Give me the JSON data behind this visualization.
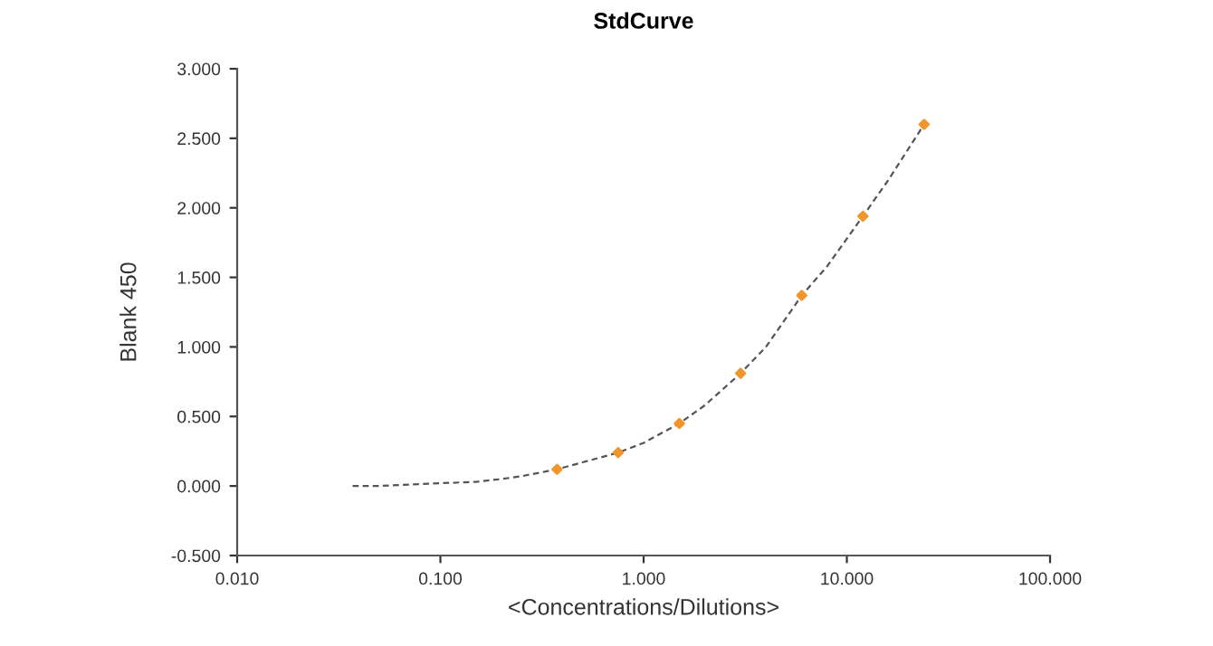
{
  "chart_data": {
    "type": "scatter",
    "title": "StdCurve",
    "xlabel": "<Concentrations/Dilutions>",
    "ylabel": "Blank 450",
    "log": "x",
    "grid": false,
    "legend": false,
    "xlim": [
      0.01,
      100
    ],
    "xticks": [
      {
        "value": 0.01,
        "label": "0.010"
      },
      {
        "value": 0.1,
        "label": "0.100"
      },
      {
        "value": 1,
        "label": "1.000"
      },
      {
        "value": 10,
        "label": "10.000"
      },
      {
        "value": 100,
        "label": "100.000"
      }
    ],
    "ylim": [
      -0.5,
      3.0
    ],
    "yticks": [
      {
        "value": -0.5,
        "label": "-0.500"
      },
      {
        "value": 0,
        "label": "0.000"
      },
      {
        "value": 0.5,
        "label": "0.500"
      },
      {
        "value": 1,
        "label": "1.000"
      },
      {
        "value": 1.5,
        "label": "1.500"
      },
      {
        "value": 2,
        "label": "2.000"
      },
      {
        "value": 2.5,
        "label": "2.500"
      },
      {
        "value": 3,
        "label": "3.000"
      }
    ],
    "series": [
      {
        "color": "#f0962a",
        "marker": "diamond",
        "x": [
          0.375,
          0.75,
          1.5,
          3,
          6,
          12,
          24
        ],
        "values": [
          0.12,
          0.24,
          0.45,
          0.81,
          1.37,
          1.94,
          2.6
        ]
      },
      {
        "type": "line",
        "color": "#555555",
        "line_style": "dashed",
        "marker": "none",
        "x": [
          0.037,
          0.05,
          0.07,
          0.1,
          0.15,
          0.2,
          0.25,
          0.375,
          0.5,
          0.75,
          1,
          1.5,
          2,
          3,
          4,
          6,
          8,
          12,
          16,
          24
        ],
        "values": [
          0.0,
          0.0,
          0.01,
          0.02,
          0.03,
          0.05,
          0.07,
          0.12,
          0.17,
          0.24,
          0.31,
          0.45,
          0.58,
          0.81,
          1.0,
          1.37,
          1.58,
          1.94,
          2.2,
          2.6
        ]
      }
    ]
  }
}
